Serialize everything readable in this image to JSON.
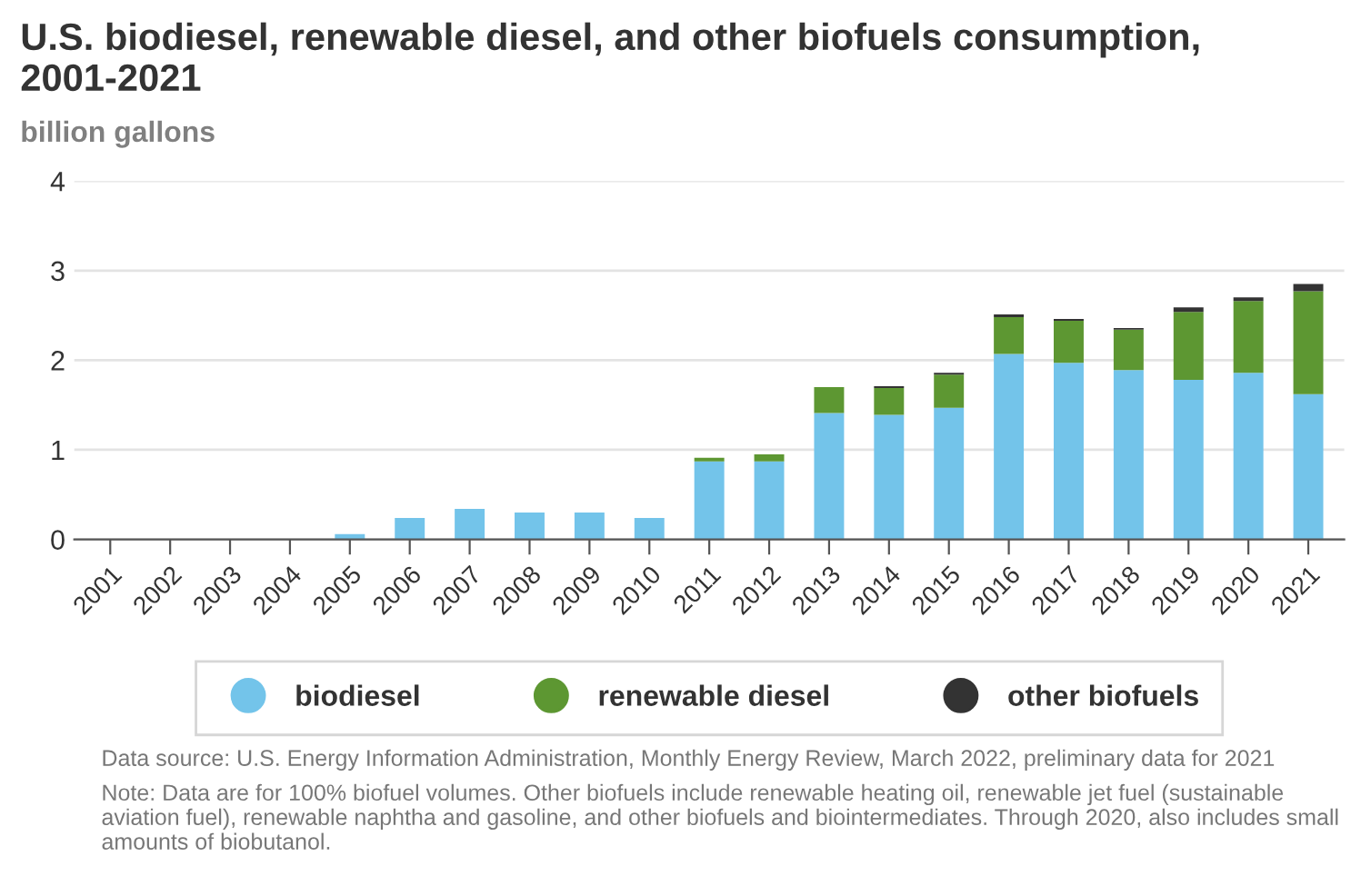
{
  "chart_data": {
    "type": "bar",
    "title": "U.S. biodiesel, renewable diesel, and other biofuels consumption, 2001-2021",
    "ylabel": "billion gallons",
    "categories": [
      "2001",
      "2002",
      "2003",
      "2004",
      "2005",
      "2006",
      "2007",
      "2008",
      "2009",
      "2010",
      "2011",
      "2012",
      "2013",
      "2014",
      "2015",
      "2016",
      "2017",
      "2018",
      "2019",
      "2020",
      "2021"
    ],
    "stacked": true,
    "series": [
      {
        "name": "biodiesel",
        "color": "#73c4ea",
        "values": [
          0,
          0,
          0,
          0,
          0.06,
          0.24,
          0.34,
          0.3,
          0.3,
          0.24,
          0.87,
          0.87,
          1.41,
          1.39,
          1.47,
          2.07,
          1.97,
          1.89,
          1.78,
          1.86,
          1.62
        ]
      },
      {
        "name": "renewable diesel",
        "color": "#5d9732",
        "values": [
          0,
          0,
          0,
          0,
          0,
          0,
          0,
          0,
          0,
          0,
          0.04,
          0.08,
          0.29,
          0.3,
          0.37,
          0.41,
          0.47,
          0.45,
          0.76,
          0.8,
          1.15
        ]
      },
      {
        "name": "other biofuels",
        "color": "#333333",
        "values": [
          0,
          0,
          0,
          0,
          0,
          0,
          0,
          0,
          0,
          0,
          0,
          0,
          0,
          0.02,
          0.02,
          0.03,
          0.02,
          0.02,
          0.05,
          0.04,
          0.08
        ]
      }
    ],
    "ylim": [
      0,
      4
    ],
    "yticks": [
      0,
      1,
      2,
      3,
      4
    ],
    "grid": "y",
    "legend": "bottom",
    "annotations": [
      "Data source: U.S. Energy Information Administration, Monthly Energy Review, March 2022, preliminary data for 2021",
      "Note: Data are for 100% biofuel volumes. Other biofuels include renewable heating oil, renewable jet fuel (sustainable aviation fuel), renewable naphtha and gasoline, and other biofuels and biointermediates. Through 2020, also includes small amounts of biobutanol."
    ]
  }
}
